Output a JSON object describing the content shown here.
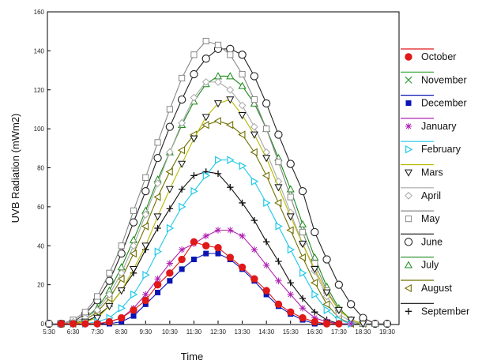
{
  "chart_data": {
    "type": "line",
    "title": "",
    "xlabel": "Time",
    "ylabel": "UVB Radiation (mWm2)",
    "ylim": [
      0,
      160
    ],
    "yticks": [
      "0",
      "20",
      "40",
      "60",
      "80",
      "100",
      "120",
      "140",
      "160"
    ],
    "x": [
      "5:30",
      "6:00",
      "6:30",
      "7:00",
      "7:30",
      "8:00",
      "8:30",
      "9:00",
      "9:30",
      "10:00",
      "10:30",
      "11:00",
      "11:30",
      "12:00",
      "12:30",
      "13:00",
      "13:30",
      "14:00",
      "14:30",
      "15:00",
      "15:30",
      "16:00",
      "16:30",
      "17:00",
      "17:30",
      "18:00",
      "18:30",
      "19:00",
      "19:30"
    ],
    "xticklabels": [
      "5:30",
      "6:30",
      "7:30",
      "8:30",
      "9:30",
      "10:30",
      "11:30",
      "12:30",
      "13:30",
      "14:30",
      "15:30",
      "16:30",
      "17:30",
      "18:30",
      "19:30"
    ],
    "legend_position": "right",
    "grid": false,
    "series": [
      {
        "name": "October",
        "color": "#e01818",
        "marker": "filled-circle",
        "values": [
          null,
          0,
          0,
          0,
          0,
          1,
          3,
          7,
          12,
          20,
          26,
          33,
          42,
          40,
          39,
          34,
          29,
          23,
          17,
          10,
          6,
          3,
          1,
          0,
          0,
          null,
          null,
          null,
          null
        ]
      },
      {
        "name": "November",
        "color": "#30a030",
        "marker": "x",
        "values": [
          null,
          null,
          null,
          null,
          null,
          null,
          null,
          null,
          null,
          null,
          null,
          null,
          null,
          null,
          null,
          null,
          null,
          null,
          null,
          null,
          null,
          null,
          null,
          null,
          null,
          null,
          null,
          null,
          null
        ]
      },
      {
        "name": "December",
        "color": "#0a14b4",
        "marker": "filled-square",
        "values": [
          null,
          0,
          0,
          0,
          0,
          0,
          1,
          4,
          10,
          16,
          22,
          28,
          33,
          36,
          36,
          33,
          28,
          22,
          15,
          9,
          5,
          2,
          0,
          0,
          null,
          null,
          null,
          null,
          null
        ]
      },
      {
        "name": "January",
        "color": "#b020b0",
        "marker": "asterisk",
        "values": [
          null,
          0,
          0,
          0,
          0,
          1,
          3,
          8,
          15,
          23,
          31,
          38,
          41,
          45,
          48,
          48,
          45,
          38,
          30,
          22,
          15,
          8,
          3,
          1,
          0,
          0,
          null,
          null,
          null
        ]
      },
      {
        "name": "February",
        "color": "#20c8e8",
        "marker": "triangle-right",
        "values": [
          null,
          0,
          0,
          0,
          1,
          3,
          8,
          15,
          25,
          37,
          49,
          60,
          68,
          76,
          84,
          84,
          81,
          73,
          62,
          50,
          38,
          26,
          15,
          7,
          2,
          0,
          null,
          null,
          null
        ]
      },
      {
        "name": "Mars",
        "color": "#b8b800",
        "marker": "triangle-down",
        "values": [
          null,
          0,
          0,
          1,
          3,
          9,
          17,
          28,
          40,
          55,
          69,
          82,
          95,
          106,
          113,
          115,
          107,
          97,
          85,
          70,
          55,
          41,
          28,
          16,
          7,
          2,
          0,
          null,
          null
        ]
      },
      {
        "name": "April",
        "color": "#a8a8a8",
        "marker": "diamond",
        "values": [
          null,
          0,
          1,
          3,
          7,
          15,
          26,
          40,
          56,
          72,
          88,
          103,
          116,
          124,
          124,
          120,
          112,
          101,
          88,
          73,
          57,
          41,
          27,
          14,
          5,
          1,
          0,
          null,
          null
        ]
      },
      {
        "name": "May",
        "color": "#888888",
        "marker": "open-square",
        "values": [
          0,
          0,
          2,
          6,
          14,
          26,
          40,
          58,
          75,
          93,
          110,
          126,
          138,
          145,
          143,
          138,
          128,
          115,
          100,
          83,
          65,
          47,
          31,
          17,
          7,
          2,
          0,
          0,
          0
        ]
      },
      {
        "name": "June",
        "color": "#222222",
        "marker": "open-circle",
        "values": [
          0,
          0,
          1,
          5,
          12,
          22,
          36,
          52,
          68,
          85,
          101,
          115,
          128,
          136,
          141,
          141,
          138,
          127,
          113,
          97,
          82,
          68,
          47,
          33,
          20,
          10,
          3,
          0,
          0
        ]
      },
      {
        "name": "July",
        "color": "#1a8a1a",
        "marker": "open-triangle",
        "values": [
          null,
          0,
          1,
          3,
          8,
          17,
          29,
          43,
          58,
          74,
          88,
          102,
          114,
          123,
          127,
          127,
          122,
          113,
          100,
          85,
          69,
          51,
          34,
          19,
          8,
          2,
          0,
          0,
          null
        ]
      },
      {
        "name": "August",
        "color": "#707000",
        "marker": "triangle-left",
        "values": [
          null,
          0,
          0,
          2,
          6,
          13,
          23,
          36,
          50,
          65,
          78,
          89,
          97,
          102,
          104,
          102,
          97,
          88,
          76,
          62,
          48,
          34,
          21,
          10,
          3,
          0,
          0,
          null,
          null
        ]
      },
      {
        "name": "September",
        "color": "#111111",
        "marker": "plus",
        "values": [
          null,
          0,
          0,
          1,
          4,
          9,
          17,
          26,
          38,
          49,
          59,
          69,
          76,
          78,
          77,
          70,
          62,
          53,
          42,
          32,
          21,
          13,
          6,
          2,
          0,
          null,
          null,
          null,
          null
        ]
      }
    ]
  }
}
